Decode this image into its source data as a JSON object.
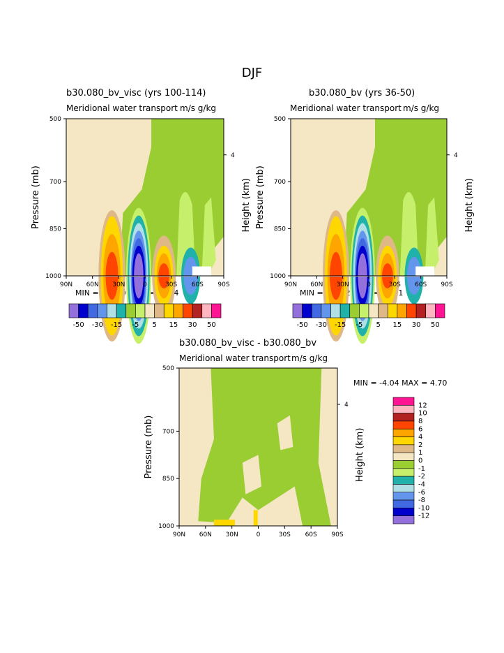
{
  "figure_title": "DJF",
  "chart_data": [
    {
      "type": "contour",
      "title": "b30.080_bv_visc (yrs 100-114)",
      "subtitle": "Meridional water transport",
      "units": "m/s g/kg",
      "xlabel": "",
      "ylabel": "Pressure (mb)",
      "ylabel_right": "Height (km)",
      "x_ticks": [
        "90N",
        "60N",
        "30N",
        "0",
        "30S",
        "60S",
        "90S"
      ],
      "y_ticks": [
        "500",
        "700",
        "850",
        "1000"
      ],
      "right_ticks": [
        "4"
      ],
      "xlim": [
        90,
        -90
      ],
      "ylim": [
        1000,
        500
      ],
      "min_max": "MIN = -77.80   MAX =   40.94",
      "levels": [
        "-50",
        "-30",
        "-15",
        "-5",
        "5",
        "15",
        "30",
        "50"
      ],
      "colorbar_colors": [
        "#9370db",
        "#0000cd",
        "#4169e1",
        "#6495ed",
        "#b0e0e6",
        "#20b2aa",
        "#9acd32",
        "#c6f06c",
        "#f5e6c4",
        "#deb887",
        "#ffd700",
        "#ffa500",
        "#ff4500",
        "#b22222",
        "#ffb6c1",
        "#ff1493"
      ]
    },
    {
      "type": "contour",
      "title": "b30.080_bv (yrs 36-50)",
      "subtitle": "Meridional water transport",
      "units": "m/s g/kg",
      "xlabel": "",
      "ylabel": "Pressure (mb)",
      "ylabel_right": "Height (km)",
      "x_ticks": [
        "90N",
        "60N",
        "30N",
        "0",
        "30S",
        "60S",
        "90S"
      ],
      "y_ticks": [
        "500",
        "700",
        "850",
        "1000"
      ],
      "right_ticks": [
        "4"
      ],
      "xlim": [
        90,
        -90
      ],
      "ylim": [
        1000,
        500
      ],
      "min_max": "MIN = -78.42   MAX =   39.51",
      "levels": [
        "-50",
        "-30",
        "-15",
        "-5",
        "5",
        "15",
        "30",
        "50"
      ],
      "colorbar_colors": [
        "#9370db",
        "#0000cd",
        "#4169e1",
        "#6495ed",
        "#b0e0e6",
        "#20b2aa",
        "#9acd32",
        "#c6f06c",
        "#f5e6c4",
        "#deb887",
        "#ffd700",
        "#ffa500",
        "#ff4500",
        "#b22222",
        "#ffb6c1",
        "#ff1493"
      ]
    },
    {
      "type": "contour",
      "title": "b30.080_bv_visc - b30.080_bv",
      "subtitle": "Meridional water transport",
      "units": "m/s g/kg",
      "xlabel": "",
      "ylabel": "Pressure (mb)",
      "ylabel_right": "Height (km)",
      "x_ticks": [
        "90N",
        "60N",
        "30N",
        "0",
        "30S",
        "60S",
        "90S"
      ],
      "y_ticks": [
        "500",
        "700",
        "850",
        "1000"
      ],
      "right_ticks": [
        "4"
      ],
      "xlim": [
        90,
        -90
      ],
      "ylim": [
        1000,
        500
      ],
      "min_max": "MIN =   -4.04   MAX =    4.70",
      "levels": [
        "12",
        "10",
        "8",
        "6",
        "4",
        "2",
        "1",
        "0",
        "-1",
        "-2",
        "-4",
        "-6",
        "-8",
        "-10",
        "-12"
      ],
      "colorbar_colors": [
        "#ff1493",
        "#ffb6c1",
        "#b22222",
        "#ff4500",
        "#ffa500",
        "#ffd700",
        "#deb887",
        "#f5e6c4",
        "#9acd32",
        "#c6f06c",
        "#20b2aa",
        "#b0e0e6",
        "#6495ed",
        "#4169e1",
        "#0000cd",
        "#9370db"
      ]
    }
  ]
}
